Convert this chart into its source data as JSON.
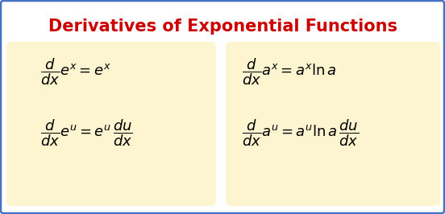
{
  "title": "Derivatives of Exponential Functions",
  "title_color": "#cc0000",
  "title_fontsize": 15,
  "background_color": "#ffffff",
  "box_color": "#fdf5d0",
  "border_color": "#4472c4",
  "formula_color": "#000000",
  "formula_fontsize": 13
}
